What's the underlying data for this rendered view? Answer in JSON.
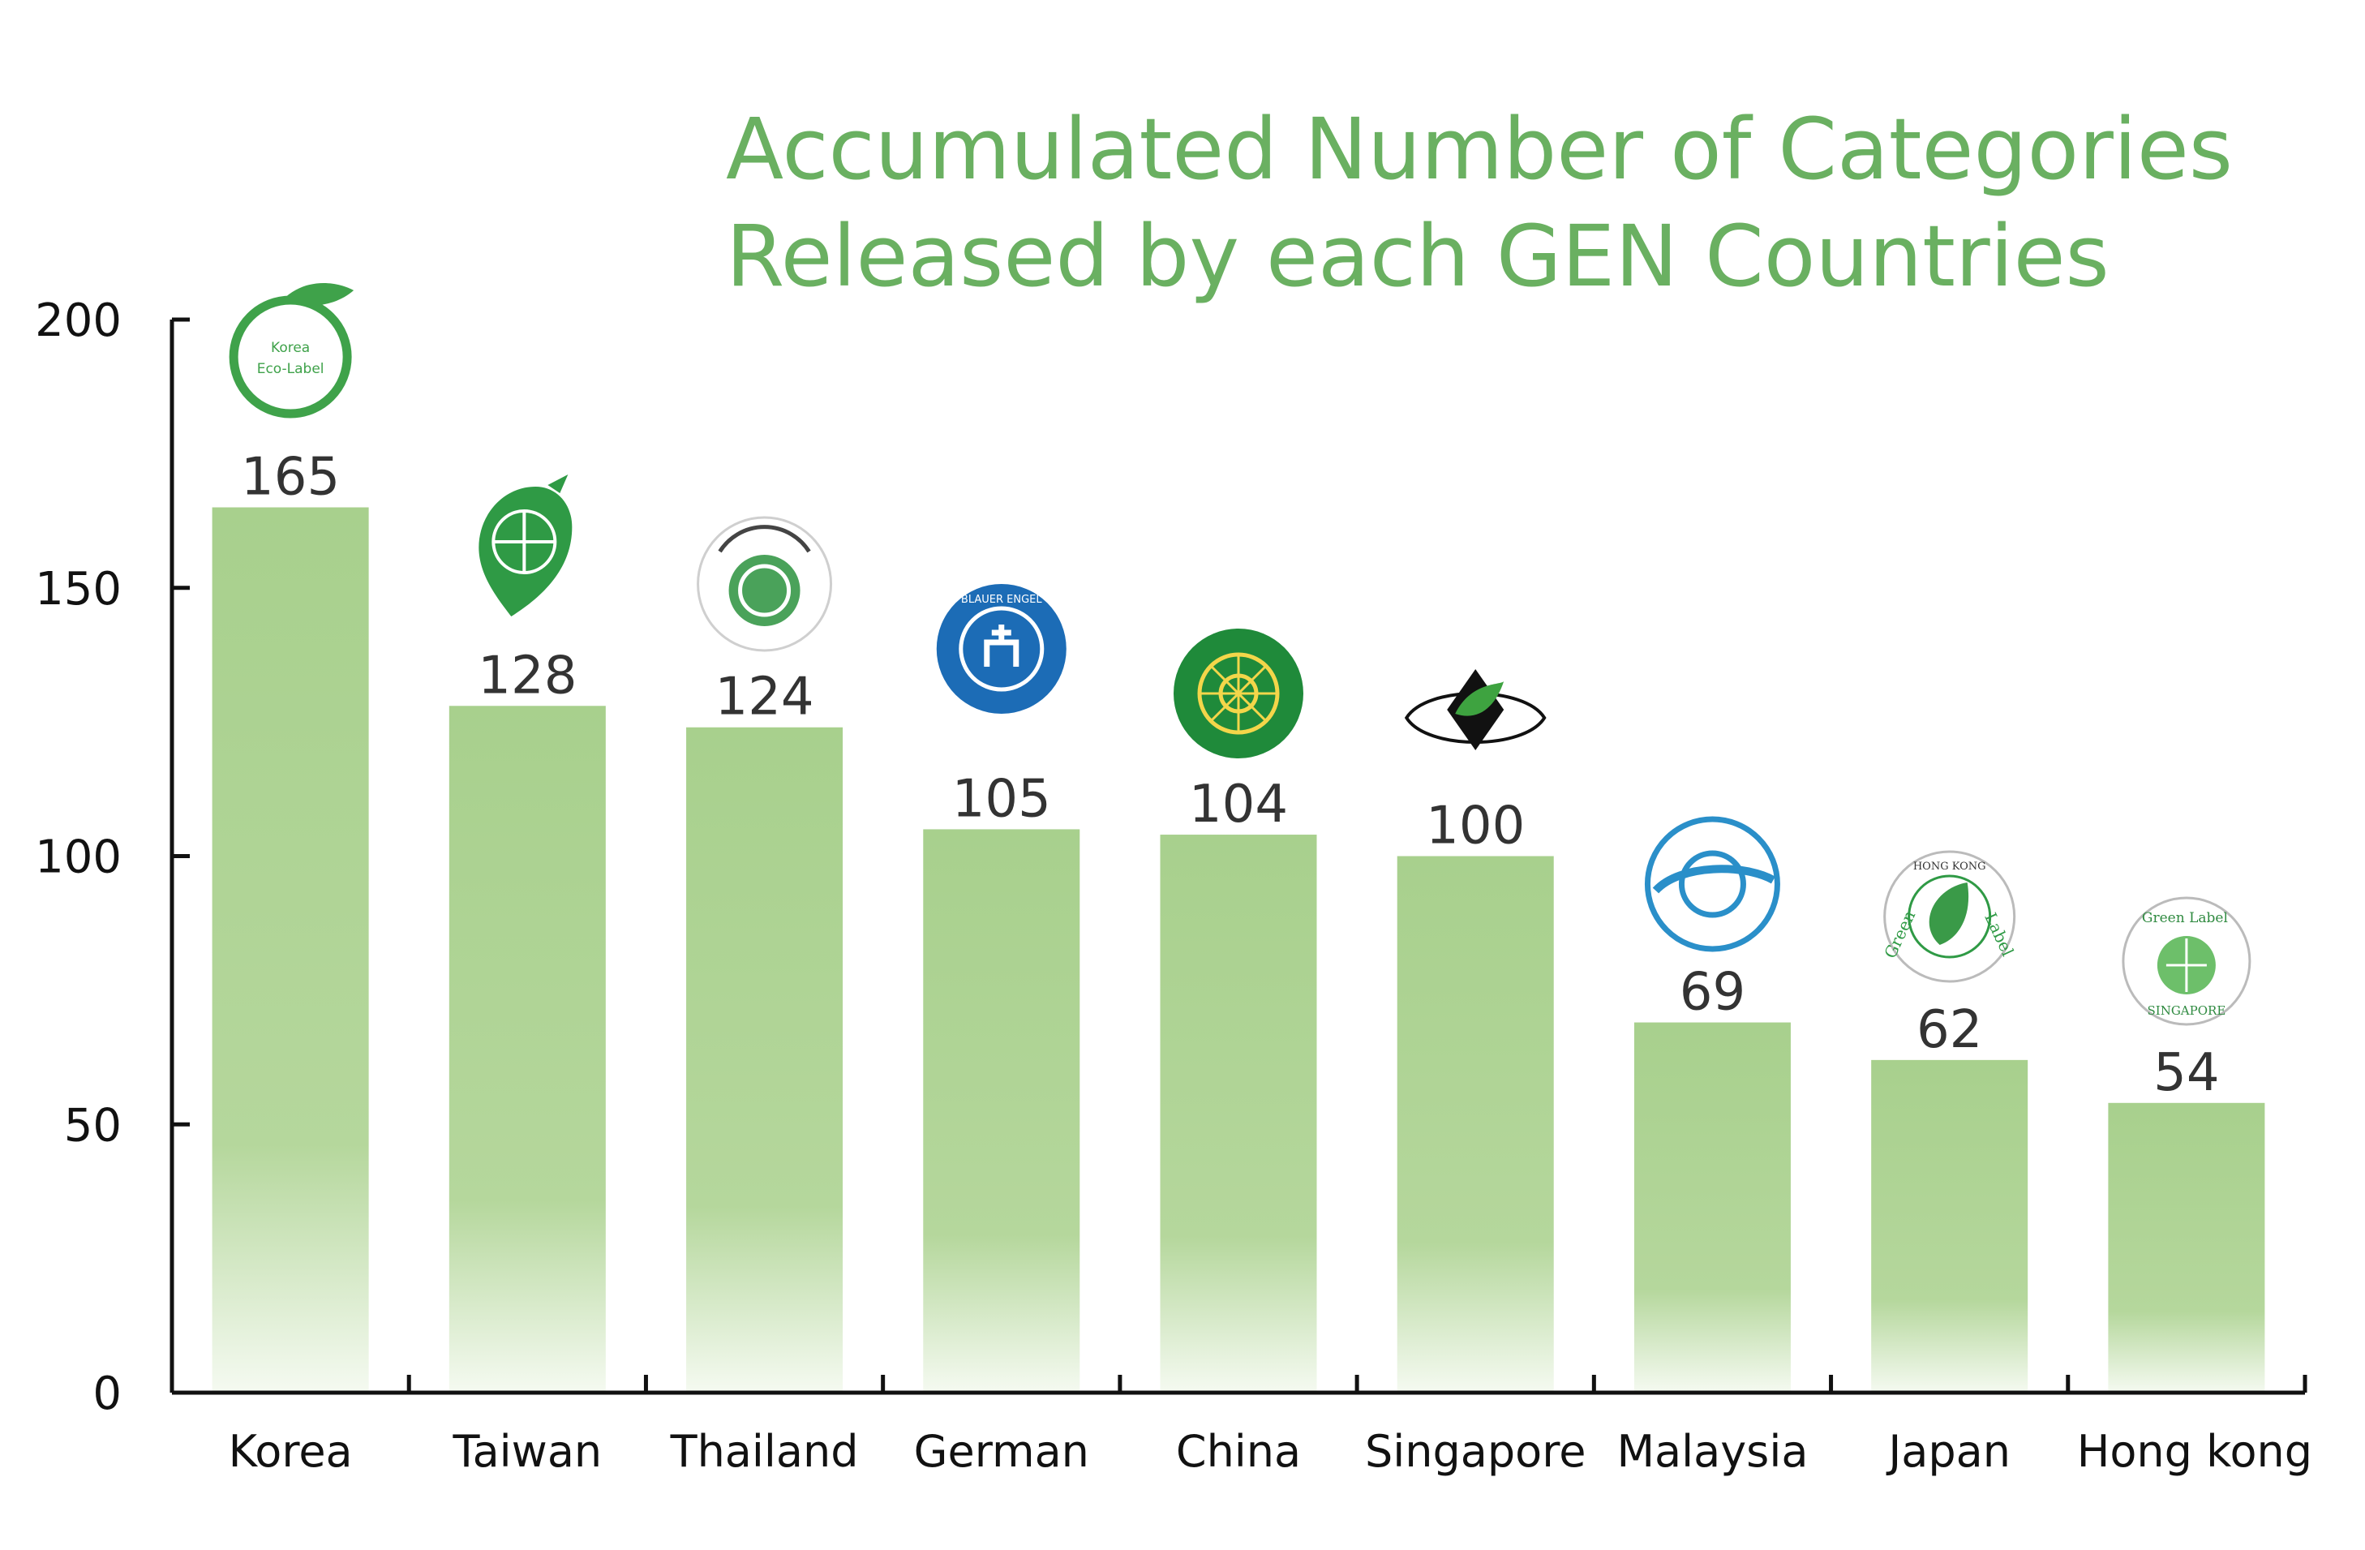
{
  "chart_data": {
    "type": "bar",
    "title_lines": [
      "Accumulated Number of Categories",
      "Released by each GEN Countries"
    ],
    "xlabel": "",
    "ylabel": "",
    "categories": [
      "Korea",
      "Taiwan",
      "Thailand",
      "German",
      "China",
      "Singapore",
      "Malaysia",
      "Japan",
      "Hong kong"
    ],
    "values": [
      165,
      128,
      124,
      105,
      104,
      100,
      69,
      62,
      54
    ],
    "data_labels": [
      "165",
      "128",
      "124",
      "105",
      "104",
      "100",
      "69",
      "62",
      "54"
    ],
    "yticks": [
      "0",
      "50",
      "100",
      "150",
      "200"
    ],
    "ylim": [
      0,
      200
    ],
    "grid": false,
    "legend": "none",
    "bar_color": "#a8d08d",
    "title_color": "#6ab061",
    "logo_labels": {
      "korea": [
        "Korea",
        "Eco-Label"
      ],
      "germany": "BLAUER ENGEL",
      "hongkong": [
        "HONG KONG",
        "Green",
        "Label"
      ],
      "singapore": [
        "Green",
        "Label",
        "SINGAPORE"
      ]
    },
    "logos": [
      "korea-eco-label-icon",
      "taiwan-green-mark-icon",
      "thailand-green-label-icon",
      "blue-angel-icon",
      "china-environmental-label-icon",
      "singapore-green-label-icon",
      "malaysia-eco-label-icon",
      "hong-kong-green-label-icon",
      "singapore-green-label-leaf-icon"
    ]
  }
}
